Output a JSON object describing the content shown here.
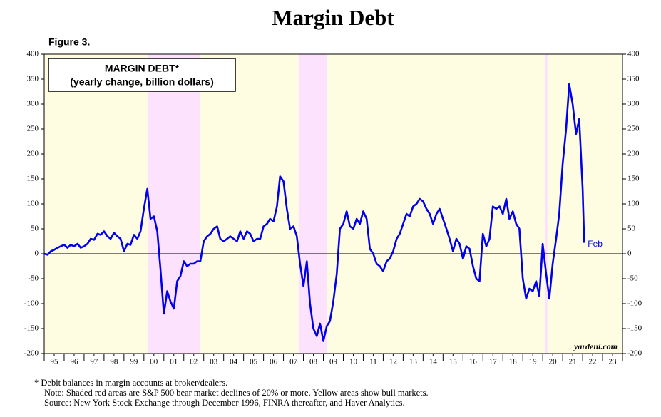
{
  "chart_data": {
    "type": "line",
    "title": "Margin Debt",
    "figure_label": "Figure 3.",
    "box_title": [
      "MARGIN DEBT*",
      "(yearly change, billion dollars)"
    ],
    "annotations": {
      "end_label": "Feb",
      "source": "yardeni.com"
    },
    "footnotes": [
      "*  Debit balances in margin accounts at broker/dealers.",
      "Note: Shaded red areas are S&P 500 bear market declines of 20% or more. Yellow areas show bull markets.",
      "Source: New York Stock Exchange through December 1996, FINRA thereafter, and Haver Analytics."
    ],
    "xlim": [
      1995,
      2024
    ],
    "ylim": [
      -200,
      400
    ],
    "yticks": [
      -200,
      -150,
      -100,
      -50,
      0,
      50,
      100,
      150,
      200,
      250,
      300,
      350,
      400
    ],
    "xticks": [
      {
        "value": 1995.5,
        "label": "95"
      },
      {
        "value": 1996.5,
        "label": "96"
      },
      {
        "value": 1997.5,
        "label": "97"
      },
      {
        "value": 1998.5,
        "label": "98"
      },
      {
        "value": 1999.5,
        "label": "99"
      },
      {
        "value": 2000.5,
        "label": "00"
      },
      {
        "value": 2001.5,
        "label": "01"
      },
      {
        "value": 2002.5,
        "label": "02"
      },
      {
        "value": 2003.5,
        "label": "03"
      },
      {
        "value": 2004.5,
        "label": "04"
      },
      {
        "value": 2005.5,
        "label": "05"
      },
      {
        "value": 2006.5,
        "label": "06"
      },
      {
        "value": 2007.5,
        "label": "07"
      },
      {
        "value": 2008.5,
        "label": "08"
      },
      {
        "value": 2009.5,
        "label": "09"
      },
      {
        "value": 2010.5,
        "label": "10"
      },
      {
        "value": 2011.5,
        "label": "11"
      },
      {
        "value": 2012.5,
        "label": "12"
      },
      {
        "value": 2013.5,
        "label": "13"
      },
      {
        "value": 2014.5,
        "label": "14"
      },
      {
        "value": 2015.5,
        "label": "15"
      },
      {
        "value": 2016.5,
        "label": "16"
      },
      {
        "value": 2017.5,
        "label": "17"
      },
      {
        "value": 2018.5,
        "label": "18"
      },
      {
        "value": 2019.5,
        "label": "19"
      },
      {
        "value": 2020.5,
        "label": "20"
      },
      {
        "value": 2021.5,
        "label": "21"
      },
      {
        "value": 2022.5,
        "label": "22"
      },
      {
        "value": 2023.5,
        "label": "23"
      }
    ],
    "shading": [
      {
        "from": 1995,
        "to": 2000.22,
        "color": "#fefde2"
      },
      {
        "from": 2000.22,
        "to": 2002.8,
        "color": "#fde2fd"
      },
      {
        "from": 2002.8,
        "to": 2007.76,
        "color": "#fefde2"
      },
      {
        "from": 2007.76,
        "to": 2009.16,
        "color": "#fde2fd"
      },
      {
        "from": 2009.16,
        "to": 2020.13,
        "color": "#fefde2"
      },
      {
        "from": 2020.13,
        "to": 2020.24,
        "color": "#fde2fd"
      },
      {
        "from": 2020.24,
        "to": 2024,
        "color": "#fefde2"
      }
    ],
    "series": [
      {
        "name": "Margin debt",
        "color": "#0000ee",
        "x": [
          1995,
          1995.17,
          1995.33,
          1995.5,
          1995.67,
          1995.83,
          1996,
          1996.17,
          1996.33,
          1996.5,
          1996.67,
          1996.83,
          1997,
          1997.17,
          1997.33,
          1997.5,
          1997.67,
          1997.83,
          1998,
          1998.17,
          1998.33,
          1998.5,
          1998.67,
          1998.83,
          1999,
          1999.17,
          1999.33,
          1999.5,
          1999.67,
          1999.83,
          2000,
          2000.17,
          2000.33,
          2000.5,
          2000.67,
          2000.83,
          2001,
          2001.17,
          2001.33,
          2001.5,
          2001.67,
          2001.83,
          2002,
          2002.17,
          2002.33,
          2002.5,
          2002.67,
          2002.83,
          2003,
          2003.17,
          2003.33,
          2003.5,
          2003.67,
          2003.83,
          2004,
          2004.17,
          2004.33,
          2004.5,
          2004.67,
          2004.83,
          2005,
          2005.17,
          2005.33,
          2005.5,
          2005.67,
          2005.83,
          2006,
          2006.17,
          2006.33,
          2006.5,
          2006.67,
          2006.83,
          2007,
          2007.17,
          2007.33,
          2007.5,
          2007.67,
          2007.83,
          2008,
          2008.17,
          2008.33,
          2008.5,
          2008.67,
          2008.83,
          2009,
          2009.17,
          2009.33,
          2009.5,
          2009.67,
          2009.83,
          2010,
          2010.17,
          2010.33,
          2010.5,
          2010.67,
          2010.83,
          2011,
          2011.17,
          2011.33,
          2011.5,
          2011.67,
          2011.83,
          2012,
          2012.17,
          2012.33,
          2012.5,
          2012.67,
          2012.83,
          2013,
          2013.17,
          2013.33,
          2013.5,
          2013.67,
          2013.83,
          2014,
          2014.17,
          2014.33,
          2014.5,
          2014.67,
          2014.83,
          2015,
          2015.17,
          2015.33,
          2015.5,
          2015.67,
          2015.83,
          2016,
          2016.17,
          2016.33,
          2016.5,
          2016.67,
          2016.83,
          2017,
          2017.17,
          2017.33,
          2017.5,
          2017.67,
          2017.83,
          2018,
          2018.17,
          2018.33,
          2018.5,
          2018.67,
          2018.83,
          2019,
          2019.17,
          2019.33,
          2019.5,
          2019.67,
          2019.83,
          2020,
          2020.17,
          2020.33,
          2020.5,
          2020.67,
          2020.83,
          2021,
          2021.17,
          2021.33,
          2021.5,
          2021.67,
          2021.83,
          2022,
          2022.08
        ],
        "values": [
          0,
          -2,
          5,
          8,
          12,
          15,
          18,
          12,
          18,
          15,
          20,
          12,
          15,
          20,
          30,
          28,
          40,
          38,
          45,
          35,
          30,
          42,
          35,
          30,
          5,
          20,
          18,
          38,
          30,
          45,
          90,
          130,
          70,
          75,
          45,
          -30,
          -120,
          -75,
          -95,
          -110,
          -55,
          -45,
          -15,
          -25,
          -20,
          -20,
          -15,
          -15,
          25,
          35,
          40,
          50,
          55,
          30,
          25,
          30,
          35,
          30,
          25,
          45,
          30,
          45,
          40,
          25,
          30,
          30,
          55,
          60,
          70,
          65,
          95,
          155,
          145,
          90,
          50,
          55,
          35,
          -20,
          -65,
          -15,
          -100,
          -150,
          -165,
          -140,
          -175,
          -145,
          -135,
          -95,
          -40,
          50,
          60,
          85,
          55,
          50,
          70,
          60,
          85,
          70,
          10,
          0,
          -20,
          -25,
          -35,
          -15,
          -10,
          5,
          30,
          40,
          60,
          80,
          75,
          95,
          100,
          110,
          105,
          90,
          80,
          60,
          80,
          90,
          70,
          50,
          30,
          5,
          30,
          20,
          -10,
          15,
          10,
          -25,
          -50,
          -55,
          40,
          15,
          30,
          95,
          90,
          95,
          80,
          110,
          70,
          85,
          60,
          50,
          -50,
          -90,
          -70,
          -75,
          -55,
          -85,
          20,
          -40,
          -90,
          -20,
          30,
          80,
          180,
          250,
          340,
          300,
          240,
          270,
          130,
          22
        ]
      }
    ]
  }
}
